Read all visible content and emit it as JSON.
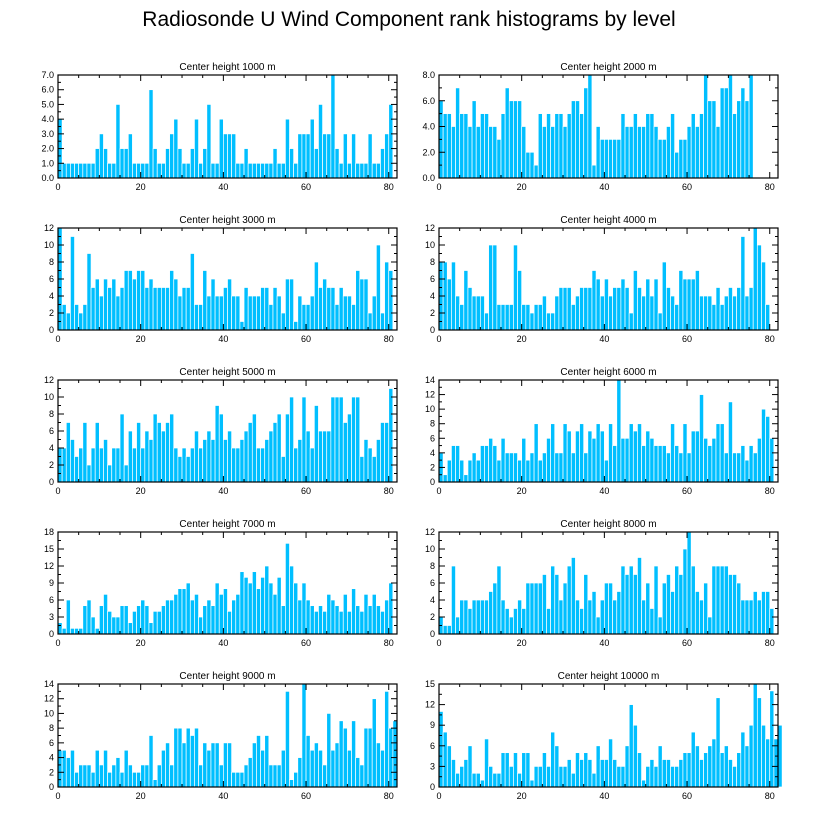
{
  "title": "Radiosonde U Wind Component rank histograms by level",
  "colors": {
    "bar": "#00bfff",
    "bar_edge": "#ffffff",
    "axis": "#000000"
  },
  "chart_data": [
    {
      "type": "bar",
      "title": "Center height 1000 m",
      "ylim": [
        0,
        7
      ],
      "yticks": [
        0,
        1,
        2,
        3,
        4,
        5,
        6,
        7
      ],
      "ytick_decimals": 1,
      "xlim": [
        0,
        82
      ],
      "xticks": [
        0,
        20,
        40,
        60,
        80
      ],
      "values": [
        4,
        1,
        1,
        1,
        1,
        1,
        1,
        1,
        1,
        2,
        3,
        2,
        1,
        1,
        5,
        2,
        2,
        3,
        1,
        1,
        1,
        1,
        6,
        2,
        1,
        1,
        2,
        3,
        4,
        2,
        1,
        1,
        2,
        4,
        1,
        2,
        5,
        1,
        1,
        4,
        3,
        3,
        3,
        1,
        1,
        2,
        1,
        1,
        1,
        1,
        1,
        1,
        2,
        1,
        1,
        4,
        2,
        1,
        3,
        3,
        3,
        4,
        2,
        5,
        3,
        3,
        7,
        2,
        1,
        3,
        1,
        3,
        1,
        1,
        1,
        3,
        1,
        1,
        2,
        3,
        5
      ]
    },
    {
      "type": "bar",
      "title": "Center height 2000 m",
      "ylim": [
        0,
        8
      ],
      "yticks": [
        0,
        2,
        4,
        6,
        8
      ],
      "ytick_decimals": 1,
      "xlim": [
        0,
        82
      ],
      "xticks": [
        0,
        20,
        40,
        60,
        80
      ],
      "values": [
        6,
        5,
        5,
        4,
        7,
        5,
        5,
        4,
        6,
        4,
        5,
        5,
        4,
        4,
        3,
        5,
        7,
        6,
        6,
        6,
        4,
        2,
        2,
        1,
        5,
        4,
        5,
        4,
        5,
        5,
        4,
        5,
        6,
        6,
        5,
        7,
        8,
        1,
        4,
        3,
        3,
        3,
        3,
        3,
        5,
        4,
        4,
        5,
        4,
        4,
        5,
        5,
        4,
        3,
        3,
        4,
        5,
        2,
        3,
        3,
        4,
        5,
        4,
        5,
        8,
        6,
        6,
        4,
        7,
        7,
        8,
        5,
        6,
        7,
        6,
        8
      ]
    },
    {
      "type": "bar",
      "title": "Center height 3000 m",
      "ylim": [
        0,
        12
      ],
      "yticks": [
        0,
        2,
        4,
        6,
        8,
        10,
        12
      ],
      "ytick_decimals": 0,
      "xlim": [
        0,
        82
      ],
      "xticks": [
        0,
        20,
        40,
        60,
        80
      ],
      "values": [
        12,
        3,
        2,
        11,
        3,
        2,
        3,
        9,
        5,
        6,
        4,
        6,
        5,
        6,
        4,
        5,
        7,
        7,
        6,
        7,
        7,
        5,
        6,
        5,
        5,
        5,
        5,
        7,
        6,
        4,
        5,
        5,
        9,
        3,
        3,
        7,
        4,
        6,
        4,
        4,
        5,
        6,
        4,
        4,
        1,
        5,
        4,
        4,
        4,
        5,
        5,
        3,
        5,
        4,
        2,
        6,
        6,
        1,
        4,
        3,
        3,
        4,
        8,
        5,
        6,
        5,
        5,
        3,
        5,
        4,
        4,
        3,
        7,
        6,
        6,
        2,
        4,
        10,
        2,
        8,
        7
      ]
    },
    {
      "type": "bar",
      "title": "Center height 4000 m",
      "ylim": [
        0,
        12
      ],
      "yticks": [
        0,
        2,
        4,
        6,
        8,
        10,
        12
      ],
      "ytick_decimals": 0,
      "xlim": [
        0,
        82
      ],
      "xticks": [
        0,
        20,
        40,
        60,
        80
      ],
      "values": [
        8,
        8,
        6,
        8,
        4,
        3,
        7,
        5,
        4,
        4,
        4,
        2,
        10,
        10,
        3,
        3,
        3,
        3,
        10,
        7,
        3,
        3,
        2,
        3,
        3,
        4,
        2,
        2,
        4,
        5,
        5,
        5,
        3,
        4,
        5,
        5,
        5,
        7,
        6,
        4,
        6,
        4,
        5,
        5,
        6,
        5,
        2,
        7,
        5,
        4,
        6,
        4,
        6,
        2,
        8,
        5,
        4,
        3,
        7,
        6,
        6,
        6,
        7,
        4,
        4,
        4,
        3,
        5,
        3,
        4,
        5,
        4,
        5,
        11,
        4,
        5,
        12,
        10,
        8,
        3
      ]
    },
    {
      "type": "bar",
      "title": "Center height 5000 m",
      "ylim": [
        0,
        12
      ],
      "yticks": [
        0,
        2,
        4,
        6,
        8,
        10,
        12
      ],
      "ytick_decimals": 0,
      "xlim": [
        0,
        82
      ],
      "xticks": [
        0,
        20,
        40,
        60,
        80
      ],
      "values": [
        4,
        4,
        7,
        5,
        3,
        4,
        7,
        2,
        4,
        7,
        4,
        5,
        2,
        4,
        4,
        8,
        2,
        6,
        4,
        7,
        4,
        6,
        5,
        8,
        7,
        6,
        7,
        8,
        4,
        3,
        4,
        3,
        4,
        6,
        4,
        5,
        6,
        5,
        9,
        8,
        5,
        6,
        4,
        4,
        5,
        6,
        7,
        8,
        4,
        4,
        5,
        6,
        7,
        8,
        3,
        8,
        10,
        4,
        5,
        10,
        6,
        4,
        9,
        6,
        6,
        6,
        10,
        10,
        10,
        7,
        8,
        10,
        10,
        3,
        5,
        4,
        3,
        5,
        7,
        7,
        11
      ]
    },
    {
      "type": "bar",
      "title": "Center height 6000 m",
      "ylim": [
        0,
        14
      ],
      "yticks": [
        0,
        2,
        4,
        6,
        8,
        10,
        12,
        14
      ],
      "ytick_decimals": 0,
      "xlim": [
        0,
        82
      ],
      "xticks": [
        0,
        20,
        40,
        60,
        80
      ],
      "values": [
        4,
        1,
        3,
        5,
        5,
        3,
        1,
        3,
        4,
        3,
        5,
        5,
        6,
        5,
        3,
        6,
        4,
        4,
        4,
        3,
        6,
        3,
        4,
        8,
        3,
        4,
        6,
        8,
        4,
        4,
        8,
        7,
        4,
        7,
        8,
        4,
        7,
        6,
        8,
        7,
        3,
        8,
        5,
        14,
        6,
        6,
        8,
        7,
        8,
        5,
        7,
        6,
        5,
        5,
        5,
        4,
        8,
        5,
        4,
        8,
        4,
        7,
        7,
        12,
        6,
        5,
        6,
        8,
        8,
        4,
        11,
        4,
        4,
        5,
        3,
        5,
        4,
        6,
        10,
        9,
        6
      ]
    },
    {
      "type": "bar",
      "title": "Center height 7000 m",
      "ylim": [
        0,
        18
      ],
      "yticks": [
        0,
        3,
        6,
        9,
        12,
        15,
        18
      ],
      "ytick_decimals": 0,
      "xlim": [
        0,
        82
      ],
      "xticks": [
        0,
        20,
        40,
        60,
        80
      ],
      "values": [
        2,
        1,
        6,
        1,
        1,
        1,
        5,
        6,
        3,
        1,
        5,
        7,
        4,
        3,
        3,
        5,
        5,
        2,
        4,
        5,
        6,
        5,
        2,
        4,
        4,
        5,
        6,
        6,
        7,
        8,
        8,
        9,
        6,
        7,
        3,
        5,
        6,
        5,
        9,
        7,
        8,
        4,
        6,
        7,
        11,
        10,
        9,
        11,
        8,
        10,
        12,
        9,
        7,
        10,
        5,
        16,
        12,
        9,
        6,
        9,
        6,
        5,
        4,
        5,
        4,
        7,
        6,
        5,
        4,
        7,
        4,
        8,
        5,
        4,
        7,
        5,
        7,
        5,
        4,
        6,
        9
      ]
    },
    {
      "type": "bar",
      "title": "Center height 8000 m",
      "ylim": [
        0,
        12
      ],
      "yticks": [
        0,
        2,
        4,
        6,
        8,
        10,
        12
      ],
      "ytick_decimals": 0,
      "xlim": [
        0,
        82
      ],
      "xticks": [
        0,
        20,
        40,
        60,
        80
      ],
      "values": [
        2,
        1,
        1,
        8,
        2,
        4,
        4,
        3,
        4,
        4,
        4,
        4,
        5,
        6,
        8,
        4,
        3,
        2,
        3,
        4,
        3,
        6,
        6,
        6,
        6,
        7,
        3,
        8,
        7,
        4,
        6,
        8,
        9,
        4,
        3,
        7,
        4,
        5,
        2,
        4,
        6,
        6,
        4,
        5,
        8,
        7,
        8,
        7,
        9,
        4,
        6,
        3,
        8,
        2,
        6,
        7,
        5,
        8,
        7,
        10,
        12,
        8,
        5,
        4,
        6,
        2,
        8,
        8,
        8,
        8,
        7,
        7,
        6,
        4,
        4,
        4,
        5,
        4,
        5,
        5,
        3
      ]
    },
    {
      "type": "bar",
      "title": "Center height 9000 m",
      "ylim": [
        0,
        14
      ],
      "yticks": [
        0,
        2,
        4,
        6,
        8,
        10,
        12,
        14
      ],
      "ytick_decimals": 0,
      "xlim": [
        0,
        82
      ],
      "xticks": [
        0,
        20,
        40,
        60,
        80
      ],
      "values": [
        5,
        5,
        4,
        5,
        2,
        3,
        3,
        3,
        2,
        5,
        3,
        5,
        2,
        3,
        4,
        2,
        5,
        3,
        2,
        2,
        3,
        3,
        7,
        1,
        3,
        5,
        6,
        3,
        8,
        8,
        6,
        8,
        7,
        8,
        3,
        6,
        5,
        6,
        6,
        3,
        6,
        6,
        2,
        2,
        2,
        3,
        4,
        6,
        7,
        5,
        7,
        3,
        3,
        3,
        5,
        13,
        1,
        2,
        4,
        14,
        7,
        5,
        6,
        5,
        3,
        10,
        5,
        6,
        9,
        8,
        5,
        9,
        4,
        3,
        8,
        8,
        12,
        6,
        5,
        13,
        8,
        9
      ]
    },
    {
      "type": "bar",
      "title": "Center height 10000 m",
      "ylim": [
        0,
        15
      ],
      "yticks": [
        0,
        3,
        6,
        9,
        12,
        15
      ],
      "ytick_decimals": 0,
      "xlim": [
        0,
        82
      ],
      "xticks": [
        0,
        20,
        40,
        60,
        80
      ],
      "values": [
        11,
        8,
        6,
        4,
        2,
        3,
        4,
        6,
        2,
        2,
        1,
        7,
        3,
        2,
        2,
        5,
        5,
        3,
        5,
        2,
        5,
        5,
        1,
        3,
        3,
        5,
        3,
        8,
        6,
        3,
        3,
        4,
        2,
        5,
        4,
        5,
        4,
        2,
        6,
        4,
        4,
        7,
        4,
        3,
        3,
        6,
        12,
        9,
        5,
        1,
        3,
        4,
        3,
        6,
        4,
        4,
        3,
        3,
        4,
        5,
        5,
        8,
        6,
        4,
        5,
        6,
        7,
        13,
        5,
        6,
        4,
        3,
        5,
        8,
        6,
        9,
        15,
        13,
        9,
        7,
        14,
        7,
        9
      ]
    }
  ]
}
